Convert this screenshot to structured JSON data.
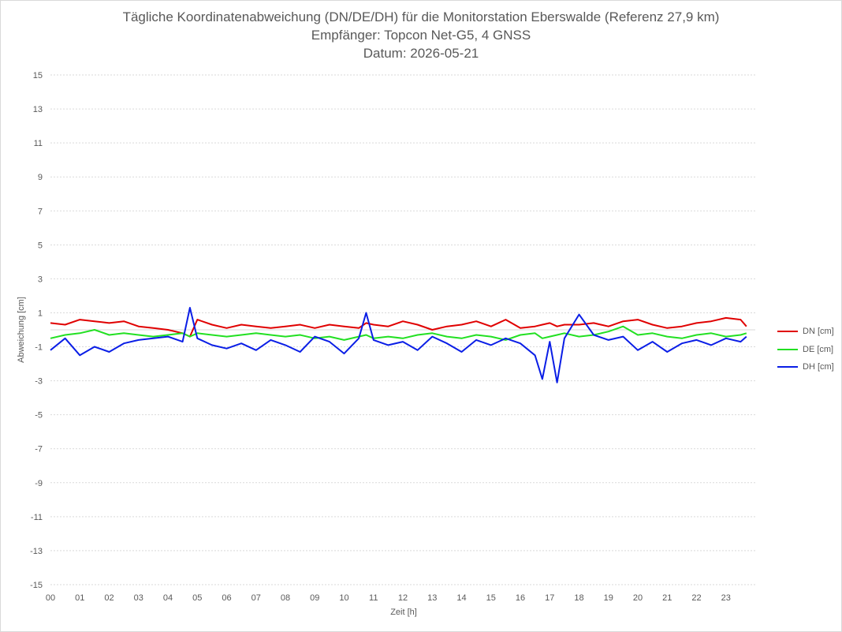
{
  "chart_data": {
    "type": "line",
    "title_lines": [
      "Tägliche Koordinatenabweichung (DN/DE/DH) für die Monitorstation Eberswalde (Referenz 27,9 km)",
      "Empfänger: Topcon Net-G5, 4 GNSS",
      "Datum: 2026-05-21"
    ],
    "xlabel": "Zeit [h]",
    "ylabel": "Abweichung [cm]",
    "xlim": [
      0,
      24
    ],
    "ylim": [
      -15,
      15
    ],
    "x_ticks": [
      "00",
      "01",
      "02",
      "03",
      "04",
      "05",
      "06",
      "07",
      "08",
      "09",
      "10",
      "11",
      "12",
      "13",
      "14",
      "15",
      "16",
      "17",
      "18",
      "19",
      "20",
      "21",
      "22",
      "23"
    ],
    "y_ticks": [
      "15",
      "13",
      "11",
      "9",
      "7",
      "5",
      "3",
      "1",
      "-1",
      "-3",
      "-5",
      "-7",
      "-9",
      "-11",
      "-13",
      "-15"
    ],
    "grid": "horizontal-dotted",
    "legend_position": "right",
    "x": [
      0.0,
      0.5,
      1.0,
      1.5,
      2.0,
      2.5,
      3.0,
      3.5,
      4.0,
      4.5,
      4.75,
      5.0,
      5.5,
      6.0,
      6.5,
      7.0,
      7.5,
      8.0,
      8.5,
      9.0,
      9.5,
      10.0,
      10.5,
      10.75,
      11.0,
      11.5,
      12.0,
      12.5,
      13.0,
      13.5,
      14.0,
      14.5,
      15.0,
      15.5,
      16.0,
      16.5,
      16.75,
      17.0,
      17.25,
      17.5,
      18.0,
      18.5,
      19.0,
      19.5,
      20.0,
      20.5,
      21.0,
      21.5,
      22.0,
      22.5,
      23.0,
      23.5,
      23.7
    ],
    "series": [
      {
        "name": "DN [cm]",
        "color": "#e00000",
        "values": [
          0.4,
          0.3,
          0.6,
          0.5,
          0.4,
          0.5,
          0.2,
          0.1,
          0.0,
          -0.2,
          -0.4,
          0.6,
          0.3,
          0.1,
          0.3,
          0.2,
          0.1,
          0.2,
          0.3,
          0.1,
          0.3,
          0.2,
          0.1,
          0.4,
          0.3,
          0.2,
          0.5,
          0.3,
          0.0,
          0.2,
          0.3,
          0.5,
          0.2,
          0.6,
          0.1,
          0.2,
          0.3,
          0.4,
          0.2,
          0.3,
          0.3,
          0.4,
          0.2,
          0.5,
          0.6,
          0.3,
          0.1,
          0.2,
          0.4,
          0.5,
          0.7,
          0.6,
          0.2
        ]
      },
      {
        "name": "DE [cm]",
        "color": "#22e022",
        "values": [
          -0.5,
          -0.3,
          -0.2,
          0.0,
          -0.3,
          -0.2,
          -0.3,
          -0.4,
          -0.3,
          -0.2,
          -0.4,
          -0.2,
          -0.3,
          -0.4,
          -0.3,
          -0.2,
          -0.3,
          -0.4,
          -0.3,
          -0.5,
          -0.4,
          -0.6,
          -0.4,
          -0.3,
          -0.5,
          -0.4,
          -0.5,
          -0.3,
          -0.2,
          -0.4,
          -0.5,
          -0.3,
          -0.4,
          -0.6,
          -0.3,
          -0.2,
          -0.5,
          -0.4,
          -0.3,
          -0.2,
          -0.4,
          -0.3,
          -0.1,
          0.2,
          -0.3,
          -0.2,
          -0.4,
          -0.5,
          -0.3,
          -0.2,
          -0.4,
          -0.3,
          -0.2
        ]
      },
      {
        "name": "DH [cm]",
        "color": "#0a1ee6",
        "values": [
          -1.2,
          -0.5,
          -1.5,
          -1.0,
          -1.3,
          -0.8,
          -0.6,
          -0.5,
          -0.4,
          -0.7,
          1.3,
          -0.5,
          -0.9,
          -1.1,
          -0.8,
          -1.2,
          -0.6,
          -0.9,
          -1.3,
          -0.4,
          -0.7,
          -1.4,
          -0.5,
          1.0,
          -0.6,
          -0.9,
          -0.7,
          -1.2,
          -0.4,
          -0.8,
          -1.3,
          -0.6,
          -0.9,
          -0.5,
          -0.8,
          -1.5,
          -2.9,
          -0.7,
          -3.1,
          -0.5,
          0.9,
          -0.3,
          -0.6,
          -0.4,
          -1.2,
          -0.7,
          -1.3,
          -0.8,
          -0.6,
          -0.9,
          -0.5,
          -0.7,
          -0.4
        ]
      }
    ]
  }
}
